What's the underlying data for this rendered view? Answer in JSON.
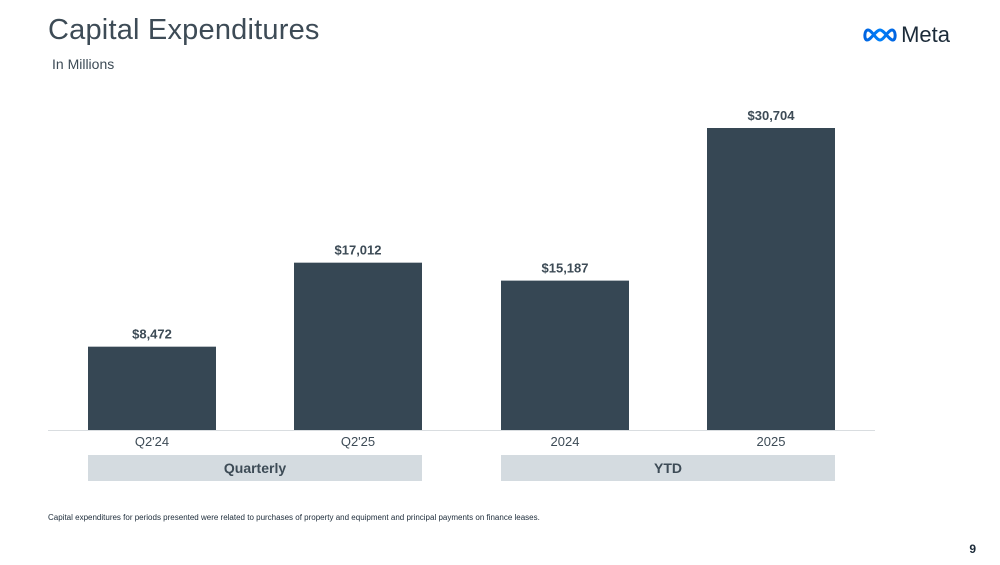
{
  "header": {
    "title": "Capital Expenditures",
    "subtitle": "In Millions",
    "logo_text": "Meta"
  },
  "colors": {
    "bar": "#364754",
    "group_band": "#d4dbe0",
    "text": "#3d4b56",
    "axis": "#d9dde0"
  },
  "chart_data": {
    "type": "bar",
    "title": "Capital Expenditures",
    "subtitle": "In Millions",
    "categories": [
      "Q2'24",
      "Q2'25",
      "2024",
      "2025"
    ],
    "values": [
      8472,
      17012,
      15187,
      30704
    ],
    "data_labels": [
      "$8,472",
      "$17,012",
      "$15,187",
      "$30,704"
    ],
    "groups": [
      {
        "label": "Quarterly",
        "categories": [
          "Q2'24",
          "Q2'25"
        ]
      },
      {
        "label": "YTD",
        "categories": [
          "2024",
          "2025"
        ]
      }
    ],
    "ylim": [
      0,
      31000
    ],
    "grid": false,
    "legend": "none"
  },
  "footer": {
    "footnote": "Capital expenditures for periods presented were related to purchases of property and equipment and principal payments on finance leases.",
    "page_number": "9"
  }
}
